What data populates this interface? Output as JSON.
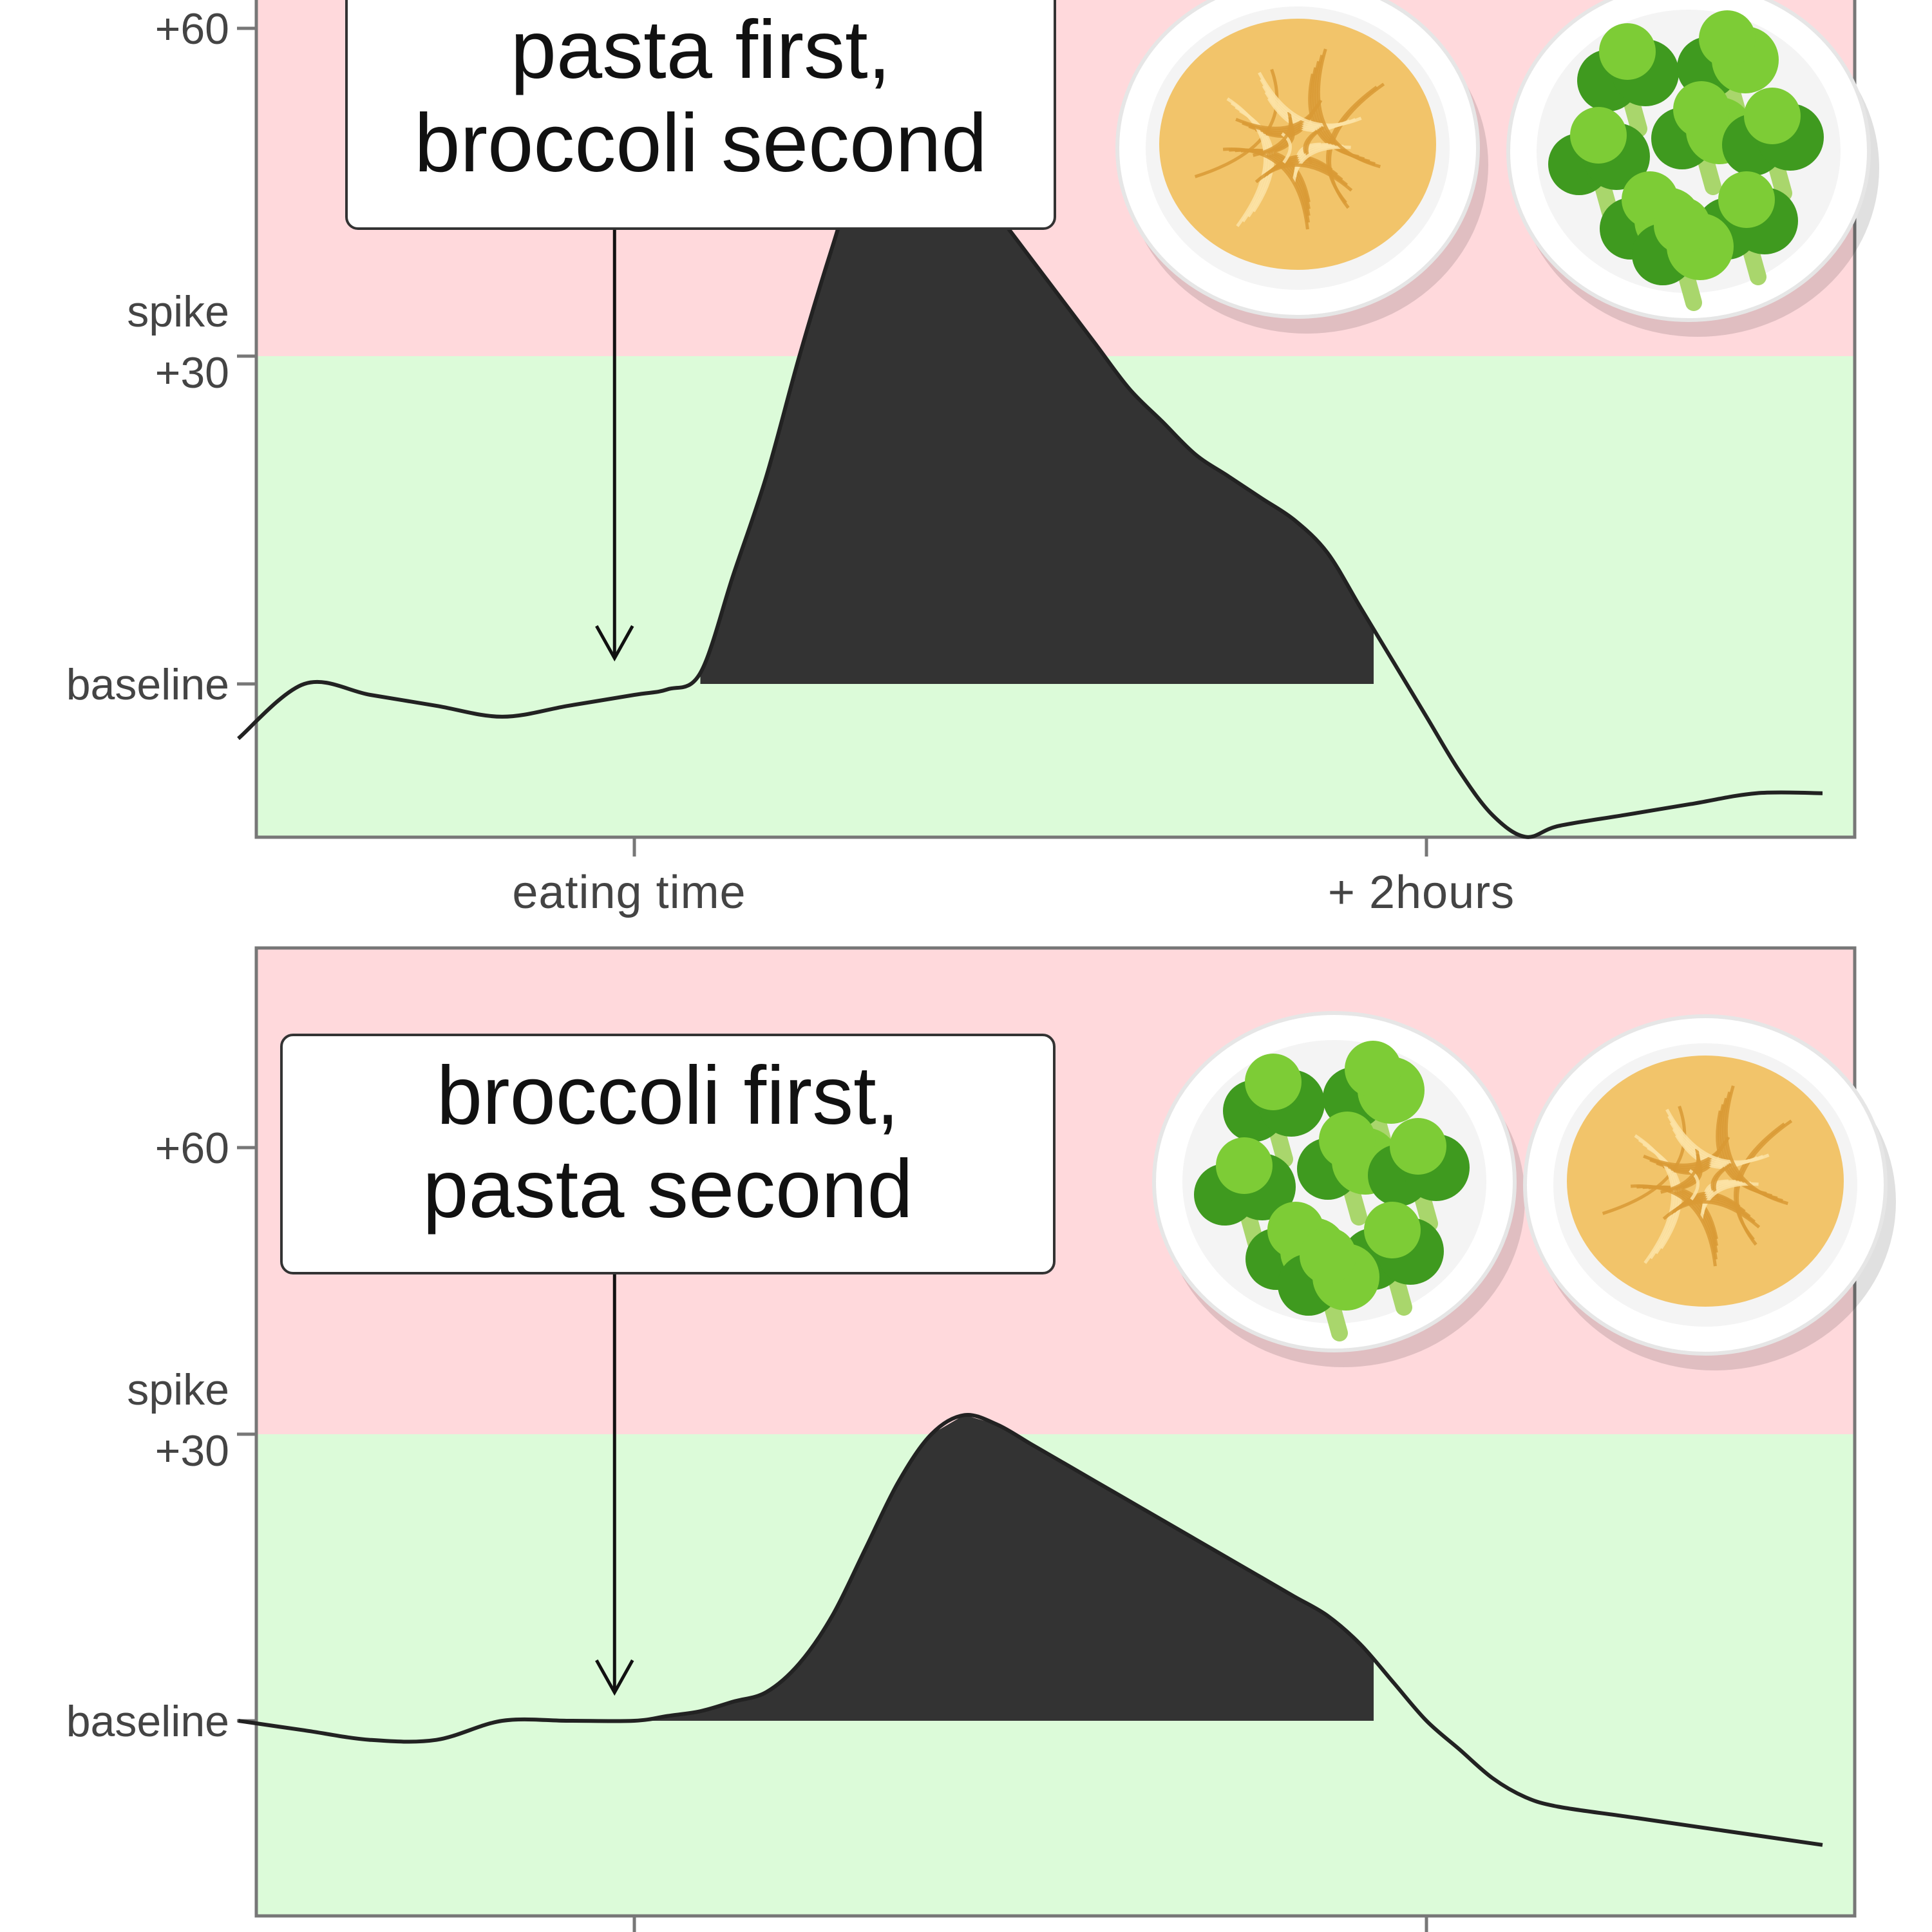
{
  "colors": {
    "spike_zone": "#ffd9dc",
    "normal_zone": "#dcfbd9",
    "curve": "#222222",
    "area": "#333333",
    "frame": "#777777",
    "pasta": "#f2c46a",
    "pasta_dark": "#d99a35",
    "broccoli": "#3f9a1f",
    "broccoli_light": "#7dcc36",
    "broccoli_stem": "#a9d66c",
    "bowl": "#ffffff",
    "bowl_rim": "#e6e6e6"
  },
  "icons": [
    "pasta-bowl-icon",
    "broccoli-bowl-icon"
  ],
  "x_axis": {
    "ticks": [
      {
        "x": 60,
        "label": "eating time"
      },
      {
        "x": 180,
        "label": "+ 2hours"
      }
    ]
  },
  "chart_data": [
    {
      "type": "area",
      "annotation": [
        "pasta first,",
        "broccoli second"
      ],
      "yticks": [
        {
          "y": 0,
          "label": [
            "baseline"
          ]
        },
        {
          "y": 30,
          "label": [
            "spike",
            "+30"
          ]
        },
        {
          "y": 60,
          "label": [
            "+60"
          ]
        }
      ],
      "spike_threshold": 30,
      "fill_range": [
        70,
        172
      ],
      "arrow_x": 57,
      "meal_order": [
        "pasta",
        "broccoli"
      ],
      "x": [
        0,
        10,
        20,
        30,
        40,
        50,
        60,
        65,
        70,
        75,
        80,
        85,
        90,
        95,
        100,
        105,
        110,
        115,
        120,
        125,
        130,
        135,
        140,
        145,
        150,
        155,
        160,
        165,
        170,
        175,
        180,
        185,
        190,
        195,
        200,
        210,
        220,
        230,
        240
      ],
      "y": [
        -5,
        0,
        -1,
        -2,
        -3,
        -2,
        -1,
        -0.5,
        1,
        10,
        19,
        30,
        40,
        49,
        52,
        51,
        47,
        43,
        39,
        35,
        31,
        27,
        24,
        21,
        19,
        17,
        15,
        12,
        7,
        2,
        -3,
        -8,
        -12,
        -14,
        -13,
        -12,
        -11,
        -10,
        -10
      ]
    },
    {
      "type": "area",
      "annotation": [
        "broccoli first,",
        "pasta second"
      ],
      "yticks": [
        {
          "y": 0,
          "label": [
            "baseline"
          ]
        },
        {
          "y": 30,
          "label": [
            "spike",
            "+30"
          ]
        },
        {
          "y": 60,
          "label": [
            "+60"
          ]
        }
      ],
      "spike_threshold": 30,
      "fill_range": [
        60,
        172
      ],
      "arrow_x": 57,
      "meal_order": [
        "broccoli",
        "pasta"
      ],
      "x": [
        0,
        10,
        20,
        30,
        40,
        50,
        60,
        65,
        70,
        75,
        80,
        85,
        90,
        95,
        100,
        105,
        110,
        115,
        120,
        125,
        130,
        135,
        140,
        145,
        150,
        155,
        160,
        165,
        170,
        175,
        180,
        185,
        190,
        195,
        200,
        210,
        220,
        230,
        240
      ],
      "y": [
        0,
        -1,
        -2,
        -2,
        0,
        0,
        0,
        0.5,
        1,
        2,
        3,
        6,
        11,
        18,
        25,
        30,
        32,
        31,
        29,
        27,
        25,
        23,
        21,
        19,
        17,
        15,
        13,
        11,
        8,
        4,
        0,
        -3,
        -6,
        -8,
        -9,
        -10,
        -11,
        -12,
        -13
      ]
    }
  ]
}
